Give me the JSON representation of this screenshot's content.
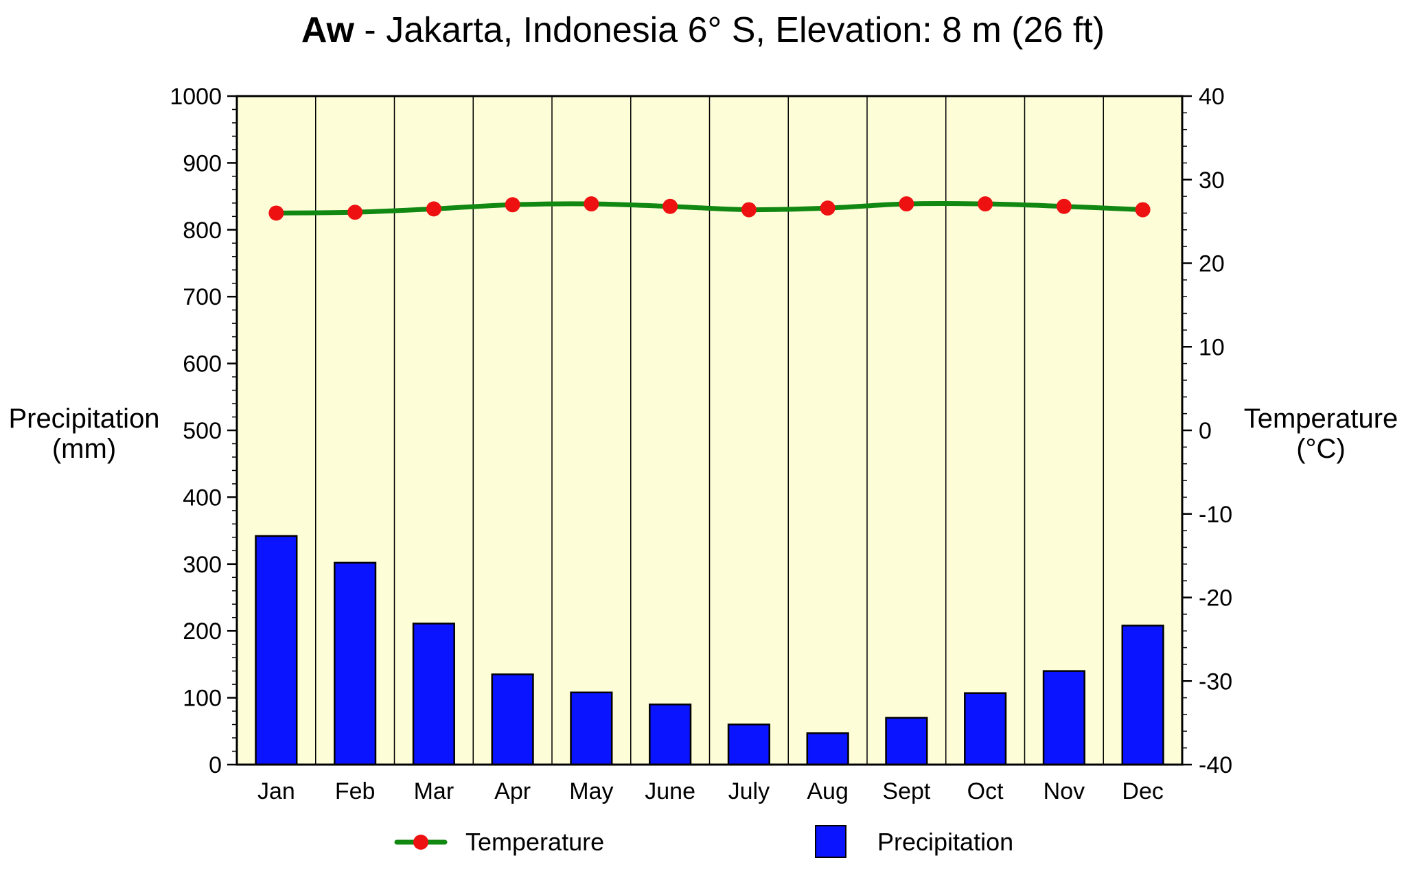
{
  "title": {
    "code": "Aw",
    "rest": " - Jakarta, Indonesia 6° S, Elevation: 8 m (26 ft)"
  },
  "colors": {
    "plot_background": "#fdfdd8",
    "bar_fill": "#0a14ff",
    "line": "#118811",
    "marker": "#ee1111"
  },
  "chart_data": {
    "type": "bar",
    "title": "Aw - Jakarta, Indonesia 6° S, Elevation: 8 m (26 ft)",
    "categories": [
      "Jan",
      "Feb",
      "Mar",
      "Apr",
      "May",
      "June",
      "July",
      "Aug",
      "Sept",
      "Oct",
      "Nov",
      "Dec"
    ],
    "ylabel_left": [
      "Precipitation",
      "(mm)"
    ],
    "ylabel_right": [
      "Temperature",
      "(°C)"
    ],
    "ylim_left": [
      0,
      1000
    ],
    "ylim_right": [
      -40,
      40
    ],
    "yticks_left": [
      0,
      100,
      200,
      300,
      400,
      500,
      600,
      700,
      800,
      900,
      1000
    ],
    "yticks_right": [
      -40,
      -30,
      -20,
      -10,
      0,
      10,
      20,
      30,
      40
    ],
    "series": [
      {
        "name": "Precipitation",
        "type": "bar",
        "axis": "left",
        "values": [
          342,
          302,
          211,
          135,
          108,
          90,
          60,
          47,
          70,
          107,
          140,
          208
        ]
      },
      {
        "name": "Temperature",
        "type": "line",
        "axis": "right",
        "values": [
          26.0,
          26.1,
          26.5,
          27.0,
          27.1,
          26.8,
          26.4,
          26.6,
          27.1,
          27.1,
          26.8,
          26.4
        ]
      }
    ],
    "grid": "vertical lines between months",
    "legend_position": "bottom"
  }
}
